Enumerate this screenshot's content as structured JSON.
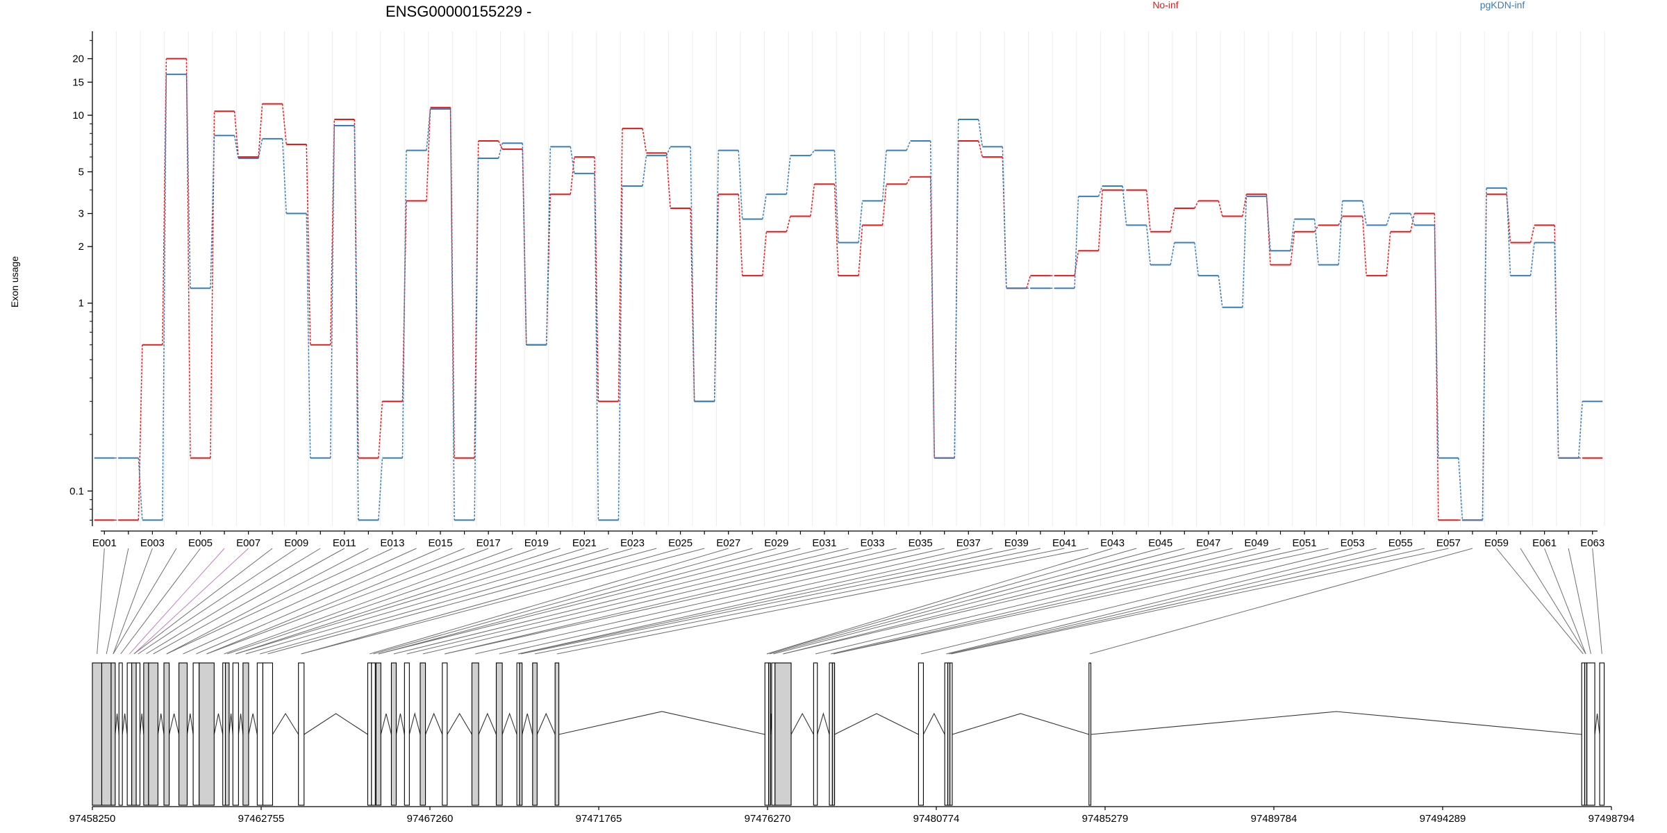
{
  "chart_data": {
    "type": "line",
    "title": "ENSG00000155229 -",
    "ylabel": "Exon usage",
    "y_scale": "log10",
    "ylim": [
      0.065,
      28
    ],
    "yticks": [
      0.1,
      1,
      2,
      3,
      5,
      10,
      15,
      20
    ],
    "grid": "vertical-per-exon",
    "legend_placement": "top",
    "categories": [
      "E001",
      "E002",
      "E003",
      "E004",
      "E005",
      "E006",
      "E007",
      "E008",
      "E009",
      "E010",
      "E011",
      "E012",
      "E013",
      "E014",
      "E015",
      "E016",
      "E017",
      "E018",
      "E019",
      "E020",
      "E021",
      "E022",
      "E023",
      "E024",
      "E025",
      "E026",
      "E027",
      "E028",
      "E029",
      "E030",
      "E031",
      "E032",
      "E033",
      "E034",
      "E035",
      "E036",
      "E037",
      "E038",
      "E039",
      "E040",
      "E041",
      "E042",
      "E043",
      "E044",
      "E045",
      "E046",
      "E047",
      "E048",
      "E049",
      "E050",
      "E051",
      "E052",
      "E053",
      "E054",
      "E055",
      "E056",
      "E057",
      "E058",
      "E059",
      "E060",
      "E061",
      "E062",
      "E063"
    ],
    "x_tick_labels": [
      "E001",
      "E003",
      "E005",
      "E007",
      "E009",
      "E011",
      "E013",
      "E015",
      "E017",
      "E019",
      "E021",
      "E023",
      "E025",
      "E027",
      "E029",
      "E031",
      "E033",
      "E035",
      "E037",
      "E039",
      "E041",
      "E043",
      "E045",
      "E047",
      "E049",
      "E051",
      "E053",
      "E055",
      "E057",
      "E059",
      "E061",
      "E063"
    ],
    "series": [
      {
        "name": "No-inf",
        "color": "#e41a1c",
        "values": [
          0.07,
          0.07,
          0.6,
          20,
          0.15,
          10.5,
          6,
          11.5,
          7,
          0.6,
          9.5,
          0.15,
          0.3,
          3.5,
          11,
          0.15,
          7.3,
          6.6,
          0.6,
          3.8,
          6,
          0.3,
          8.5,
          6.3,
          3.2,
          0.3,
          3.8,
          1.4,
          2.4,
          2.9,
          4.3,
          1.4,
          2.6,
          4.3,
          4.7,
          0.15,
          7.3,
          6,
          1.2,
          1.4,
          1.4,
          1.9,
          4,
          4,
          2.4,
          3.2,
          3.5,
          2.9,
          3.8,
          1.6,
          2.4,
          2.6,
          2.9,
          1.4,
          2.4,
          3,
          0.07,
          0.07,
          3.8,
          2.1,
          2.6,
          0.15,
          0.15
        ]
      },
      {
        "name": "pgKDN-inf",
        "color": "#377eb8",
        "values": [
          0.15,
          0.15,
          0.07,
          16.5,
          1.2,
          7.8,
          5.9,
          7.5,
          3,
          0.15,
          8.8,
          0.07,
          0.15,
          6.5,
          10.8,
          0.07,
          5.9,
          7.1,
          0.6,
          6.8,
          4.9,
          0.07,
          4.2,
          6.1,
          6.8,
          0.3,
          6.5,
          2.8,
          3.8,
          6.1,
          6.5,
          2.1,
          3.5,
          6.5,
          7.3,
          0.15,
          9.5,
          6.8,
          1.2,
          1.2,
          1.2,
          3.7,
          4.2,
          2.6,
          1.6,
          2.1,
          1.4,
          0.95,
          3.7,
          1.9,
          2.8,
          1.6,
          3.5,
          2.6,
          3,
          2.6,
          0.15,
          0.07,
          4.1,
          1.4,
          2.1,
          0.15,
          0.3
        ]
      }
    ],
    "gene_model": {
      "axis_ticks": [
        "97458250",
        "97462755",
        "97467260",
        "97471765",
        "97476270",
        "97480774",
        "97485279",
        "97489784",
        "97494289",
        "97498794"
      ],
      "axis_range": [
        97458250,
        97498794
      ],
      "exon_blocks": [
        [
          97458250,
          97458500,
          1
        ],
        [
          97458500,
          97458750,
          1
        ],
        [
          97458750,
          97458860,
          1
        ],
        [
          97458960,
          97459050,
          0
        ],
        [
          97459180,
          97459300,
          0
        ],
        [
          97459300,
          97459420,
          1
        ],
        [
          97459420,
          97459520,
          0
        ],
        [
          97459620,
          97459750,
          1
        ],
        [
          97459750,
          97460000,
          1
        ],
        [
          97460160,
          97460300,
          1
        ],
        [
          97460560,
          97460780,
          1
        ],
        [
          97460940,
          97461100,
          0
        ],
        [
          97461100,
          97461500,
          1
        ],
        [
          97461730,
          97461800,
          0
        ],
        [
          97461800,
          97461900,
          1
        ],
        [
          97462000,
          97462150,
          0
        ],
        [
          97462270,
          97462420,
          1
        ],
        [
          97462650,
          97462800,
          0
        ],
        [
          97462800,
          97463060,
          0
        ],
        [
          97463750,
          97463900,
          0
        ],
        [
          97465600,
          97465700,
          0
        ],
        [
          97465700,
          97465800,
          0
        ],
        [
          97465820,
          97465950,
          1
        ],
        [
          97466230,
          97466360,
          1
        ],
        [
          97466580,
          97466710,
          0
        ],
        [
          97467000,
          97467140,
          1
        ],
        [
          97467590,
          97467720,
          0
        ],
        [
          97468380,
          97468560,
          1
        ],
        [
          97469030,
          97469190,
          1
        ],
        [
          97469580,
          97469650,
          0
        ],
        [
          97469650,
          97469720,
          1
        ],
        [
          97470000,
          97470120,
          1
        ],
        [
          97470600,
          97470700,
          1
        ],
        [
          97476200,
          97476300,
          0
        ],
        [
          97476300,
          97476350,
          1
        ],
        [
          97476380,
          97476470,
          0
        ],
        [
          97476470,
          97476900,
          1
        ],
        [
          97477500,
          97477600,
          0
        ],
        [
          97477920,
          97478000,
          0
        ],
        [
          97478000,
          97478060,
          1
        ],
        [
          97480300,
          97480430,
          0
        ],
        [
          97481000,
          97481080,
          0
        ],
        [
          97481080,
          97481140,
          1
        ],
        [
          97481140,
          97481200,
          0
        ],
        [
          97484850,
          97484900,
          0
        ],
        [
          97498000,
          97498080,
          0
        ],
        [
          97498080,
          97498140,
          1
        ],
        [
          97498140,
          97498350,
          0
        ],
        [
          97498480,
          97498600,
          0
        ]
      ]
    }
  }
}
